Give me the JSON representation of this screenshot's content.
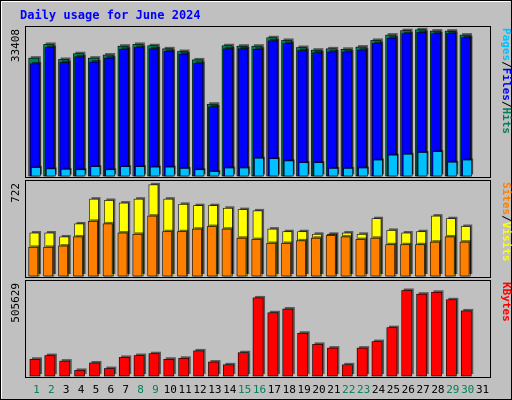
{
  "chart_data": {
    "type": "bar",
    "title": "Daily usage for June 2024",
    "categories": [
      "1",
      "2",
      "3",
      "4",
      "5",
      "6",
      "7",
      "8",
      "9",
      "10",
      "11",
      "12",
      "13",
      "14",
      "15",
      "16",
      "17",
      "18",
      "19",
      "20",
      "21",
      "22",
      "23",
      "24",
      "25",
      "26",
      "27",
      "28",
      "29",
      "30",
      "31"
    ],
    "weekend_days": [
      "1",
      "2",
      "8",
      "9",
      "15",
      "16",
      "22",
      "23",
      "29",
      "30"
    ],
    "panels": [
      {
        "id": "hits",
        "y_tick_label": "33408",
        "ylim": [
          0,
          33408
        ],
        "series": [
          {
            "name": "Hits",
            "color": "#00805c",
            "values": [
              26600,
              29700,
              26300,
              27600,
              26600,
              27300,
              29300,
              29700,
              29400,
              28700,
              28100,
              26200,
              16200,
              29400,
              29300,
              29300,
              31200,
              30600,
              29000,
              28400,
              28700,
              28600,
              29100,
              30600,
              31800,
              32800,
              33000,
              32700,
              32700,
              31800,
              0
            ]
          },
          {
            "name": "Files",
            "color": "#0000ff",
            "values": [
              25300,
              29000,
              25600,
              26900,
              25700,
              26600,
              28600,
              29000,
              28700,
              28100,
              27500,
              25400,
              15600,
              28700,
              28700,
              28600,
              30500,
              29900,
              28300,
              27800,
              28000,
              28000,
              28400,
              29900,
              31100,
              32100,
              32400,
              32100,
              32200,
              31200,
              0
            ]
          },
          {
            "name": "Pages",
            "color": "#00c0ff",
            "values": [
              1900,
              1600,
              1500,
              1400,
              2100,
              1400,
              2100,
              2100,
              2000,
              2000,
              1700,
              1400,
              1000,
              1800,
              1800,
              4000,
              3900,
              3400,
              3000,
              3000,
              1700,
              1700,
              1800,
              3600,
              4700,
              4900,
              5300,
              5500,
              3100,
              3600,
              0
            ]
          }
        ]
      },
      {
        "id": "visits",
        "y_tick_label": "722",
        "ylim": [
          0,
          722
        ],
        "series": [
          {
            "name": "Visits",
            "color": "#ffff00",
            "values": [
              330,
              330,
              300,
              400,
              590,
              580,
              560,
              590,
              700,
              590,
              550,
              540,
              540,
              520,
              510,
              500,
              360,
              340,
              340,
              320,
              320,
              330,
              320,
              440,
              350,
              330,
              340,
              460,
              440,
              380,
              0
            ]
          },
          {
            "name": "Sites",
            "color": "#ff8000",
            "values": [
              220,
              220,
              230,
              300,
              420,
              400,
              330,
              320,
              460,
              340,
              340,
              360,
              380,
              360,
              290,
              280,
              250,
              250,
              270,
              290,
              310,
              300,
              280,
              290,
              240,
              240,
              240,
              260,
              300,
              260,
              0
            ]
          }
        ]
      },
      {
        "id": "kbytes",
        "y_tick_label": "505629",
        "ylim": [
          0,
          505629
        ],
        "series": [
          {
            "name": "KBytes",
            "color": "#ff0000",
            "values": [
              90000,
              110000,
              80000,
              30000,
              70000,
              40000,
              100000,
              110000,
              120000,
              90000,
              95000,
              135000,
              75000,
              60000,
              125000,
              420000,
              340000,
              360000,
              230000,
              170000,
              150000,
              60000,
              150000,
              185000,
              260000,
              460000,
              440000,
              450000,
              410000,
              350000,
              0
            ]
          }
        ]
      }
    ],
    "right_labels": [
      {
        "panel": "hits",
        "parts": [
          "Pages",
          "Files",
          "Hits"
        ],
        "colors": [
          "#00c0ff",
          "#0000ff",
          "#00805c"
        ]
      },
      {
        "panel": "visits",
        "parts": [
          "Sites",
          "Visits"
        ],
        "colors": [
          "#ff8000",
          "#ffff00"
        ]
      },
      {
        "panel": "kbytes",
        "parts": [
          "KBytes"
        ],
        "colors": [
          "#ff0000"
        ]
      }
    ],
    "colors": {
      "background": "#c0c0c0",
      "title": "#0000ff",
      "weekday_label": "#000000",
      "weekend_label": "#00805c"
    }
  }
}
